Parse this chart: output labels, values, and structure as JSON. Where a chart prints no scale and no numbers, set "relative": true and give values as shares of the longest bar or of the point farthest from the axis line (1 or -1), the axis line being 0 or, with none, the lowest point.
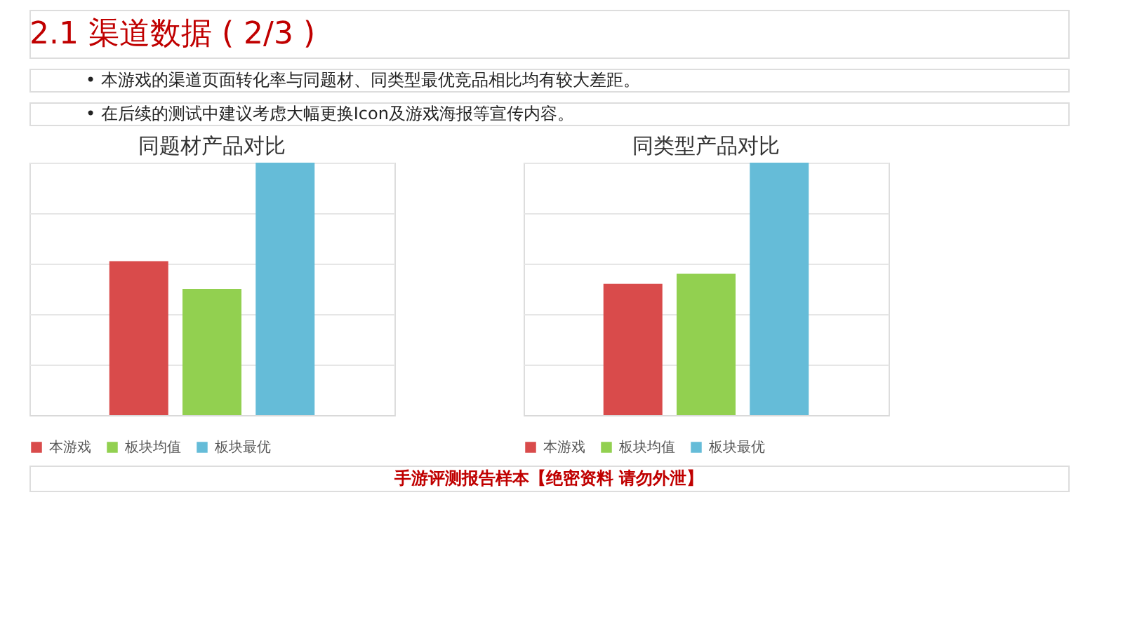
{
  "chart_data": [
    {
      "type": "bar",
      "title": "同题材产品对比",
      "relative": true,
      "categories": [
        null
      ],
      "grid": "y",
      "legend": "bottom",
      "tick_labels": false,
      "annotations": [
        "2.1 渠道数据 ( 2/3 )",
        "•  本游戏的渠道页面转化率与同题材、同类型最优竞品相比均有较大差距。",
        "•  在后续的测试中建议考虑大幅更换Icon及游戏海报等宣传内容。",
        "手游评测报告样本【绝密资料 请勿外泄】"
      ],
      "series": [
        {
          "name": "本游戏",
          "color": "#d94b4b",
          "values": [
            0.61
          ]
        },
        {
          "name": "板块均值",
          "color": "#92d050",
          "values": [
            0.5
          ]
        },
        {
          "name": "板块最优",
          "color": "#65bcd8",
          "values": [
            1.0
          ]
        }
      ]
    },
    {
      "type": "bar",
      "title": "同类型产品对比",
      "relative": true,
      "categories": [
        null
      ],
      "grid": "y",
      "legend": "bottom",
      "tick_labels": false,
      "series": [
        {
          "name": "本游戏",
          "color": "#d94b4b",
          "values": [
            0.52
          ]
        },
        {
          "name": "板块均值",
          "color": "#92d050",
          "values": [
            0.56
          ]
        },
        {
          "name": "板块最优",
          "color": "#65bcd8",
          "values": [
            1.0
          ]
        }
      ]
    }
  ]
}
